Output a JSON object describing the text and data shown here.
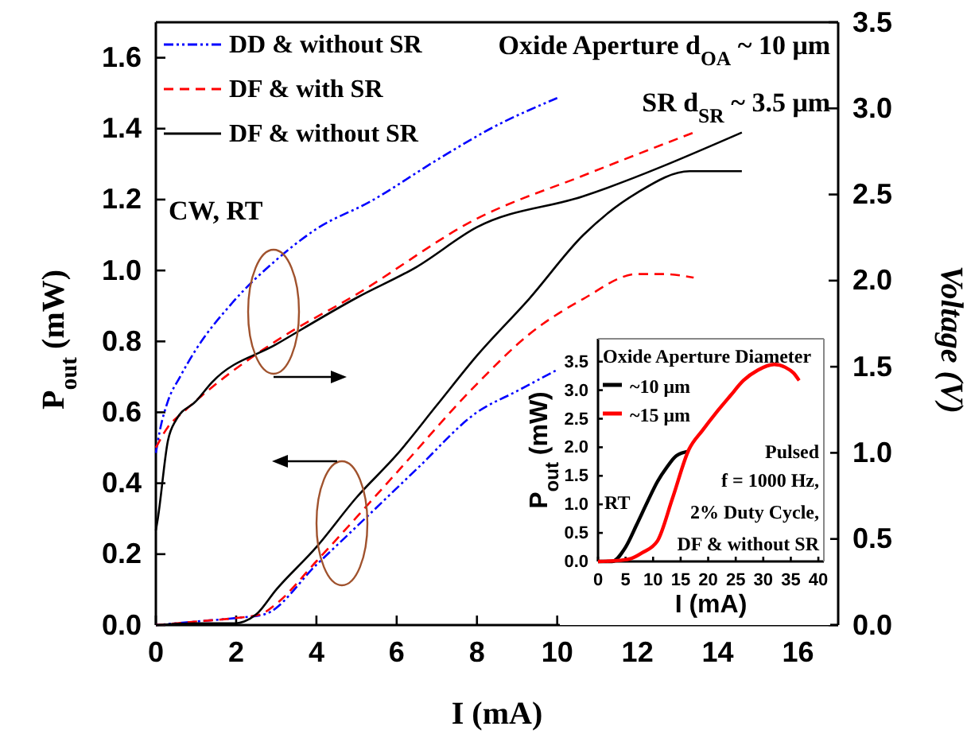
{
  "chart_data": [
    {
      "type": "line",
      "xlabel": "I (mA)",
      "ylabel": "P$_{out}$ (mW)",
      "y2label": "Voltage (V)",
      "xlim": [
        0,
        17
      ],
      "xticks": [
        0,
        2,
        4,
        6,
        8,
        10,
        12,
        14,
        16
      ],
      "ylim": [
        0,
        1.7
      ],
      "yticks": [
        {
          "value": 0,
          "label": "0.0"
        },
        0.2,
        0.4,
        0.6,
        0.8,
        {
          "value": 1,
          "label": "1.0"
        },
        1.2,
        1.4,
        1.6
      ],
      "y2lim": [
        0,
        3.5
      ],
      "y2ticks": [
        {
          "value": 0,
          "label": "0.0"
        },
        0.5,
        {
          "value": 1,
          "label": "1.0"
        },
        1.5,
        {
          "value": 2,
          "label": "2.0"
        },
        2.5,
        {
          "value": 3,
          "label": "3.0"
        },
        3.5
      ],
      "legend": "top left",
      "grid": false,
      "annotations": [
        "CW, RT",
        "Oxide Aperture d$_{OA}$ ~ 10 μm",
        "SR d$_{SR}$ ~ 3.5 μm"
      ],
      "series": [
        {
          "name": "DD & without SR",
          "color": "#0000ff",
          "line_style": "dashdot",
          "x": [
            0,
            1,
            2,
            2.7,
            4,
            5.3,
            6.5,
            8,
            9,
            10
          ],
          "values": [
            0,
            0.01,
            0.02,
            0.03,
            0.17,
            0.31,
            0.44,
            0.6,
            0.66,
            0.72
          ]
        },
        {
          "name": "DF & with SR",
          "color": "#ff0000",
          "line_style": "dashed",
          "x": [
            0,
            1,
            2,
            2.6,
            3,
            4,
            6,
            8,
            9.3,
            10.65,
            12,
            12.6,
            13.4
          ],
          "values": [
            0,
            0.01,
            0.02,
            0.03,
            0.06,
            0.18,
            0.43,
            0.68,
            0.82,
            0.92,
            0.99,
            0.99,
            0.98
          ]
        },
        {
          "name": "DF & without SR",
          "color": "#000000",
          "line_style": "solid",
          "x": [
            0,
            1,
            2,
            2.2,
            2.5,
            3,
            4,
            5,
            6,
            7,
            8,
            9.3,
            10.65,
            12,
            13.3,
            14.6
          ],
          "values": [
            0,
            0.005,
            0.005,
            0.01,
            0.03,
            0.1,
            0.22,
            0.36,
            0.48,
            0.62,
            0.76,
            0.92,
            1.1,
            1.22,
            1.28,
            1.28
          ]
        },
        {
          "color": "#0000ff",
          "line_style": "dashdot",
          "axis": "y2",
          "x": [
            0,
            0.1,
            0.3,
            0.6,
            1,
            1.9,
            3,
            4,
            5.35,
            7,
            8.4,
            10
          ],
          "values": [
            1.0,
            1.13,
            1.3,
            1.44,
            1.6,
            1.87,
            2.12,
            2.3,
            2.46,
            2.7,
            2.89,
            3.06
          ]
        },
        {
          "color": "#ff0000",
          "line_style": "dashed",
          "axis": "y2",
          "x": [
            0,
            0.3,
            0.7,
            1.5,
            3,
            5,
            8,
            10.65,
            13.4
          ],
          "values": [
            1.03,
            1.15,
            1.24,
            1.4,
            1.65,
            1.92,
            2.36,
            2.61,
            2.86
          ]
        },
        {
          "color": "#000000",
          "line_style": "solid",
          "axis": "y2",
          "x": [
            0,
            0.05,
            0.3,
            0.5,
            1,
            1.4,
            3,
            5,
            6.5,
            8,
            10.65,
            14.6
          ],
          "values": [
            0.55,
            0.62,
            1.07,
            1.19,
            1.3,
            1.41,
            1.63,
            1.9,
            2.08,
            2.31,
            2.49,
            2.86
          ]
        }
      ]
    },
    {
      "type": "line",
      "xlabel": "I (mA)",
      "ylabel": "P$_{out}$ (mW)",
      "xlim": [
        0,
        41
      ],
      "xticks": [
        0,
        5,
        10,
        15,
        20,
        25,
        30,
        35,
        40
      ],
      "ylim": [
        0,
        3.9
      ],
      "yticks": [
        {
          "value": 0,
          "label": "0.0"
        },
        0.5,
        {
          "value": 1,
          "label": "1.0"
        },
        1.5,
        {
          "value": 2,
          "label": "2.0"
        },
        2.5,
        {
          "value": 3,
          "label": "3.0"
        },
        3.5
      ],
      "legend": "top left",
      "legend_title": "Oxide Aperture Diameter",
      "grid": false,
      "annotations": [
        "Pulsed",
        "f = 1000 Hz,",
        "2% Duty Cycle,",
        "DF & without SR",
        "RT"
      ],
      "series": [
        {
          "name": "~10 μm",
          "color": "#000000",
          "x": [
            0,
            2.5,
            5,
            7,
            9,
            10.8,
            12.5,
            14.2,
            16.5
          ],
          "values": [
            0,
            0,
            0.25,
            0.64,
            1.05,
            1.4,
            1.65,
            1.85,
            1.93
          ]
        },
        {
          "name": "~15 μm",
          "color": "#ff0000",
          "x": [
            0,
            4,
            6,
            8,
            10.8,
            13.5,
            16.5,
            19,
            21.4,
            24,
            26.4,
            29,
            32,
            34,
            35.5,
            36.5
          ],
          "values": [
            0,
            0.02,
            0.05,
            0.15,
            0.36,
            1.1,
            1.96,
            2.3,
            2.6,
            2.9,
            3.17,
            3.35,
            3.45,
            3.4,
            3.3,
            3.17
          ]
        }
      ]
    }
  ]
}
